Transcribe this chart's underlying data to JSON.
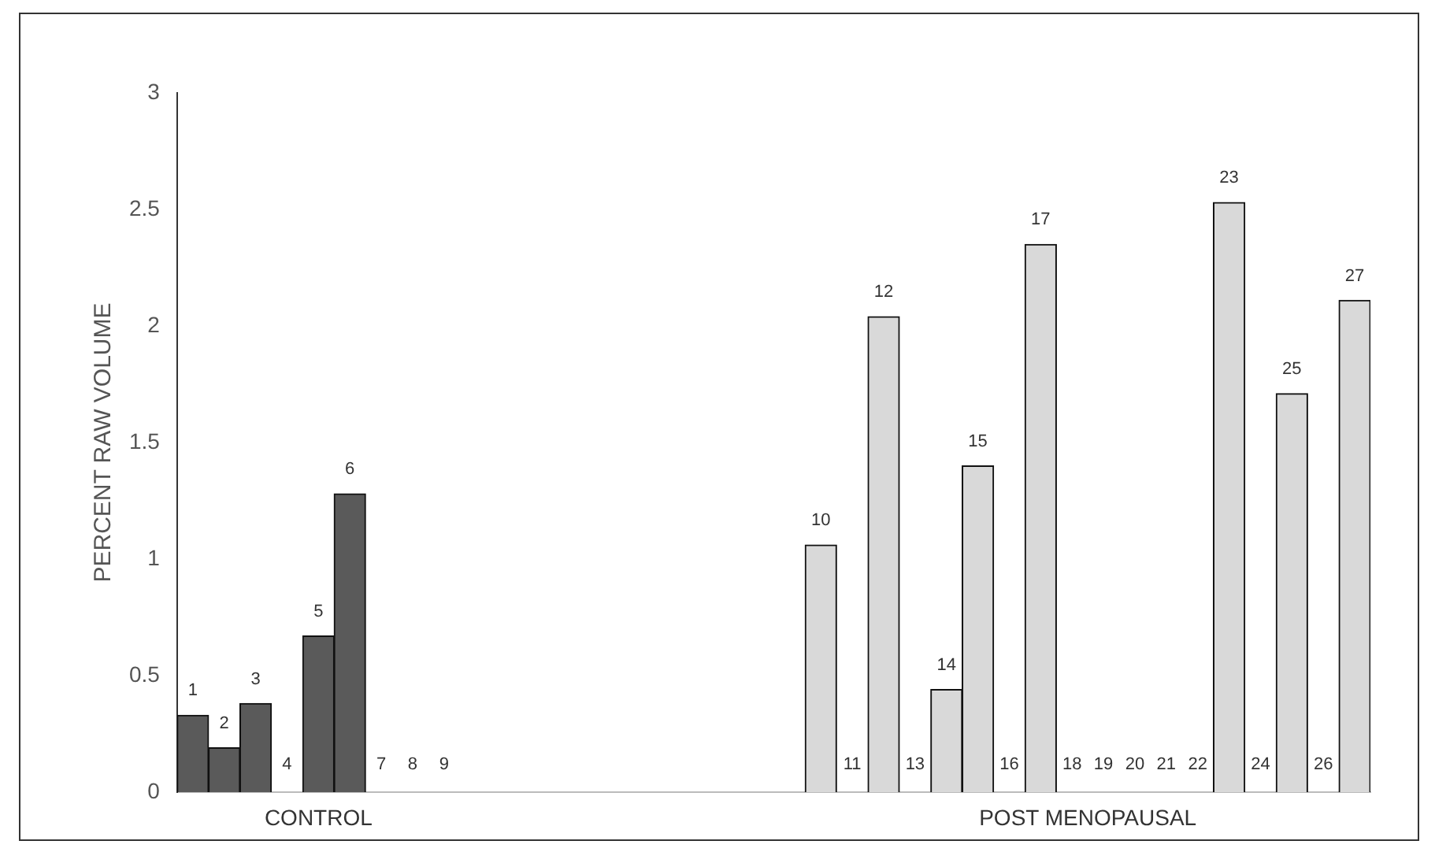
{
  "chart_data": {
    "type": "bar",
    "ylabel": "PERCENT RAW VOLUME",
    "categories": [
      "1",
      "2",
      "3",
      "4",
      "5",
      "6",
      "7",
      "8",
      "9",
      null,
      null,
      null,
      null,
      null,
      null,
      null,
      null,
      null,
      null,
      null,
      "10",
      "11",
      "12",
      "13",
      "14",
      "15",
      "16",
      "17",
      "18",
      "19",
      "20",
      "21",
      "22",
      "23",
      "24",
      "25",
      "26",
      "27"
    ],
    "series": [
      {
        "name": "CONTROL",
        "color": "#5a5a5a",
        "values": [
          0.33,
          0.19,
          0.38,
          0,
          0.67,
          1.28,
          0,
          0,
          0,
          null,
          null,
          null,
          null,
          null,
          null,
          null,
          null,
          null,
          null,
          null,
          null,
          null,
          null,
          null,
          null,
          null,
          null,
          null,
          null,
          null,
          null,
          null,
          null,
          null,
          null,
          null,
          null,
          null
        ]
      },
      {
        "name": "POST MENOPAUSAL",
        "color": "#d9d9d9",
        "values": [
          null,
          null,
          null,
          null,
          null,
          null,
          null,
          null,
          null,
          null,
          null,
          null,
          null,
          null,
          null,
          null,
          null,
          null,
          null,
          null,
          1.06,
          0,
          2.04,
          0,
          0.44,
          1.4,
          0,
          2.35,
          0,
          0,
          0,
          0,
          0,
          2.53,
          0,
          1.71,
          0,
          2.11
        ]
      }
    ],
    "ylim": [
      0,
      3
    ],
    "yticks": [
      0,
      0.5,
      1,
      1.5,
      2,
      2.5,
      3
    ],
    "grid": false,
    "legend": false
  }
}
